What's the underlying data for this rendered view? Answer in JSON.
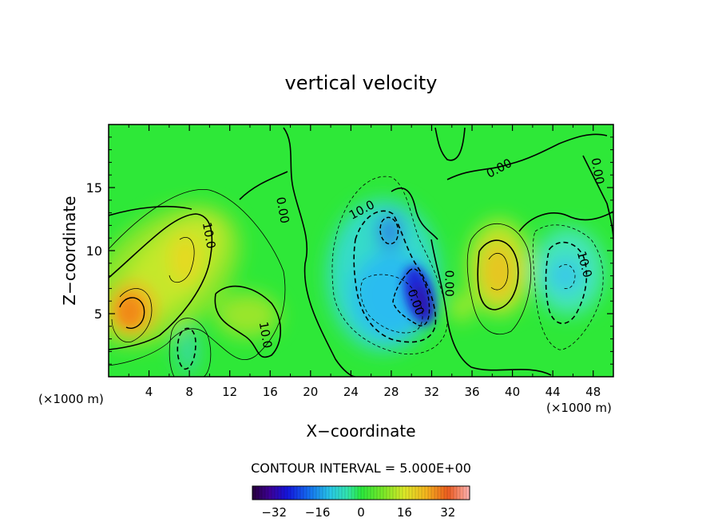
{
  "chart_data": {
    "type": "heatmap",
    "title": "vertical velocity",
    "xlabel": "X−coordinate",
    "ylabel": "Z−coordinate",
    "x_unit_left": "(×1000 m)",
    "x_unit_right": "(×1000 m)",
    "xlim": [
      0,
      50
    ],
    "ylim": [
      0,
      20
    ],
    "x_ticks": [
      4,
      8,
      12,
      16,
      20,
      24,
      28,
      32,
      36,
      40,
      44,
      48
    ],
    "y_ticks": [
      5,
      10,
      15
    ],
    "contour_interval_text": "CONTOUR INTERVAL = 5.000E+00",
    "colorbar": {
      "min": -40,
      "max": 40,
      "ticks": [
        -32,
        -16,
        0,
        16,
        32
      ],
      "tick_labels": [
        "−32",
        "−16",
        "0",
        "16",
        "32"
      ]
    },
    "contour_labels": [
      {
        "text": "10.0",
        "x": 9.9,
        "y": 11.2,
        "angle": 80
      },
      {
        "text": "10.0",
        "x": 15.5,
        "y": 3.3,
        "angle": 80
      },
      {
        "text": "0.00",
        "x": 17.2,
        "y": 13.2,
        "angle": 80
      },
      {
        "text": "10.0",
        "x": 25.1,
        "y": 13.2,
        "angle": -28
      },
      {
        "text": "0.00",
        "x": 30.4,
        "y": 5.9,
        "angle": 70
      },
      {
        "text": "0.00",
        "x": 33.7,
        "y": 7.4,
        "angle": 90
      },
      {
        "text": "0.00",
        "x": 38.7,
        "y": 16.5,
        "angle": -28
      },
      {
        "text": "0.00",
        "x": 48.4,
        "y": 16.3,
        "angle": 80
      },
      {
        "text": "10.0",
        "x": 47.1,
        "y": 8.9,
        "angle": 75
      }
    ],
    "cells": [
      {
        "x": 2.5,
        "y": 5.2,
        "value": 24
      },
      {
        "x": 7.2,
        "y": 9.7,
        "value": 16
      },
      {
        "x": 15.3,
        "y": 3.5,
        "value": 10
      },
      {
        "x": 38.5,
        "y": 8.3,
        "value": 20
      },
      {
        "x": 29.5,
        "y": 6.0,
        "value": -20
      },
      {
        "x": 31.2,
        "y": 5.2,
        "value": -30
      },
      {
        "x": 28.0,
        "y": 11.5,
        "value": -20
      },
      {
        "x": 8.3,
        "y": 2.0,
        "value": -10
      },
      {
        "x": 46.0,
        "y": 7.8,
        "value": -15
      }
    ],
    "colors": {
      "background_field": "#2ee838",
      "positive_low": "#a8ea2c",
      "positive_high": "#f5a31c",
      "negative_low": "#36dcc8",
      "negative_high": "#1a2ad8"
    }
  }
}
